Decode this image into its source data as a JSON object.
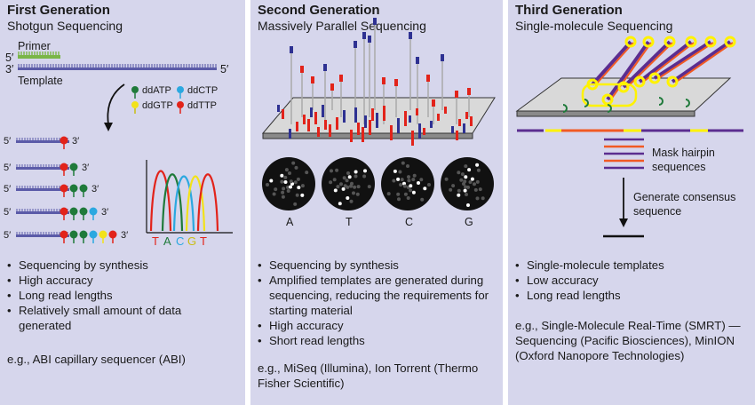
{
  "panels": [
    {
      "title": "First Generation",
      "subtitle": "Shotgun Sequencing",
      "labels": {
        "primer": "Primer",
        "five_prime": "5′",
        "three_prime": "3′",
        "template": "Template",
        "ddatp": "ddATP",
        "ddctp": "ddCTP",
        "ddgtp": "ddGTP",
        "ddttp": "ddTTP",
        "bases": [
          "T",
          "A",
          "C",
          "G",
          "T"
        ]
      },
      "bullets": [
        "Sequencing by synthesis",
        "High accuracy",
        "Long read lengths",
        "Relatively small amount of data generated"
      ],
      "example": "e.g., ABI capillary sequencer (ABI)"
    },
    {
      "title": "Second Generation",
      "subtitle": "Massively Parallel Sequencing",
      "labels": {
        "wells": [
          "A",
          "T",
          "C",
          "G"
        ]
      },
      "bullets": [
        "Sequencing by synthesis",
        "Amplified templates are generated during sequencing, reducing the requirements for starting material",
        "High accuracy",
        "Short read lengths"
      ],
      "example": "e.g., MiSeq (Illumina), Ion Torrent (Thermo Fisher Scientific)"
    },
    {
      "title": "Third Generation",
      "subtitle": "Single-molecule Sequencing",
      "labels": {
        "mask": "Mask hairpin sequences",
        "consensus": "Generate consensus sequence"
      },
      "bullets": [
        "Single-molecule templates",
        "Low accuracy",
        "Long read lengths"
      ],
      "example": "e.g., Single-Molecule Real-Time (SMRT) — Sequencing (Pacific Biosciences), MinION (Oxford Nanopore Technologies)"
    }
  ],
  "colors": {
    "panel_bg": "#d6d6ec",
    "dna": "#5b5ba8",
    "primer": "#7ab648",
    "A": "#1f7a3a",
    "C": "#2ba8e0",
    "G": "#f2e21a",
    "T": "#e2231a",
    "purple": "#5b2d90",
    "orange": "#f15a24",
    "yellow": "#fff200",
    "blue_bar": "#2e3192"
  }
}
